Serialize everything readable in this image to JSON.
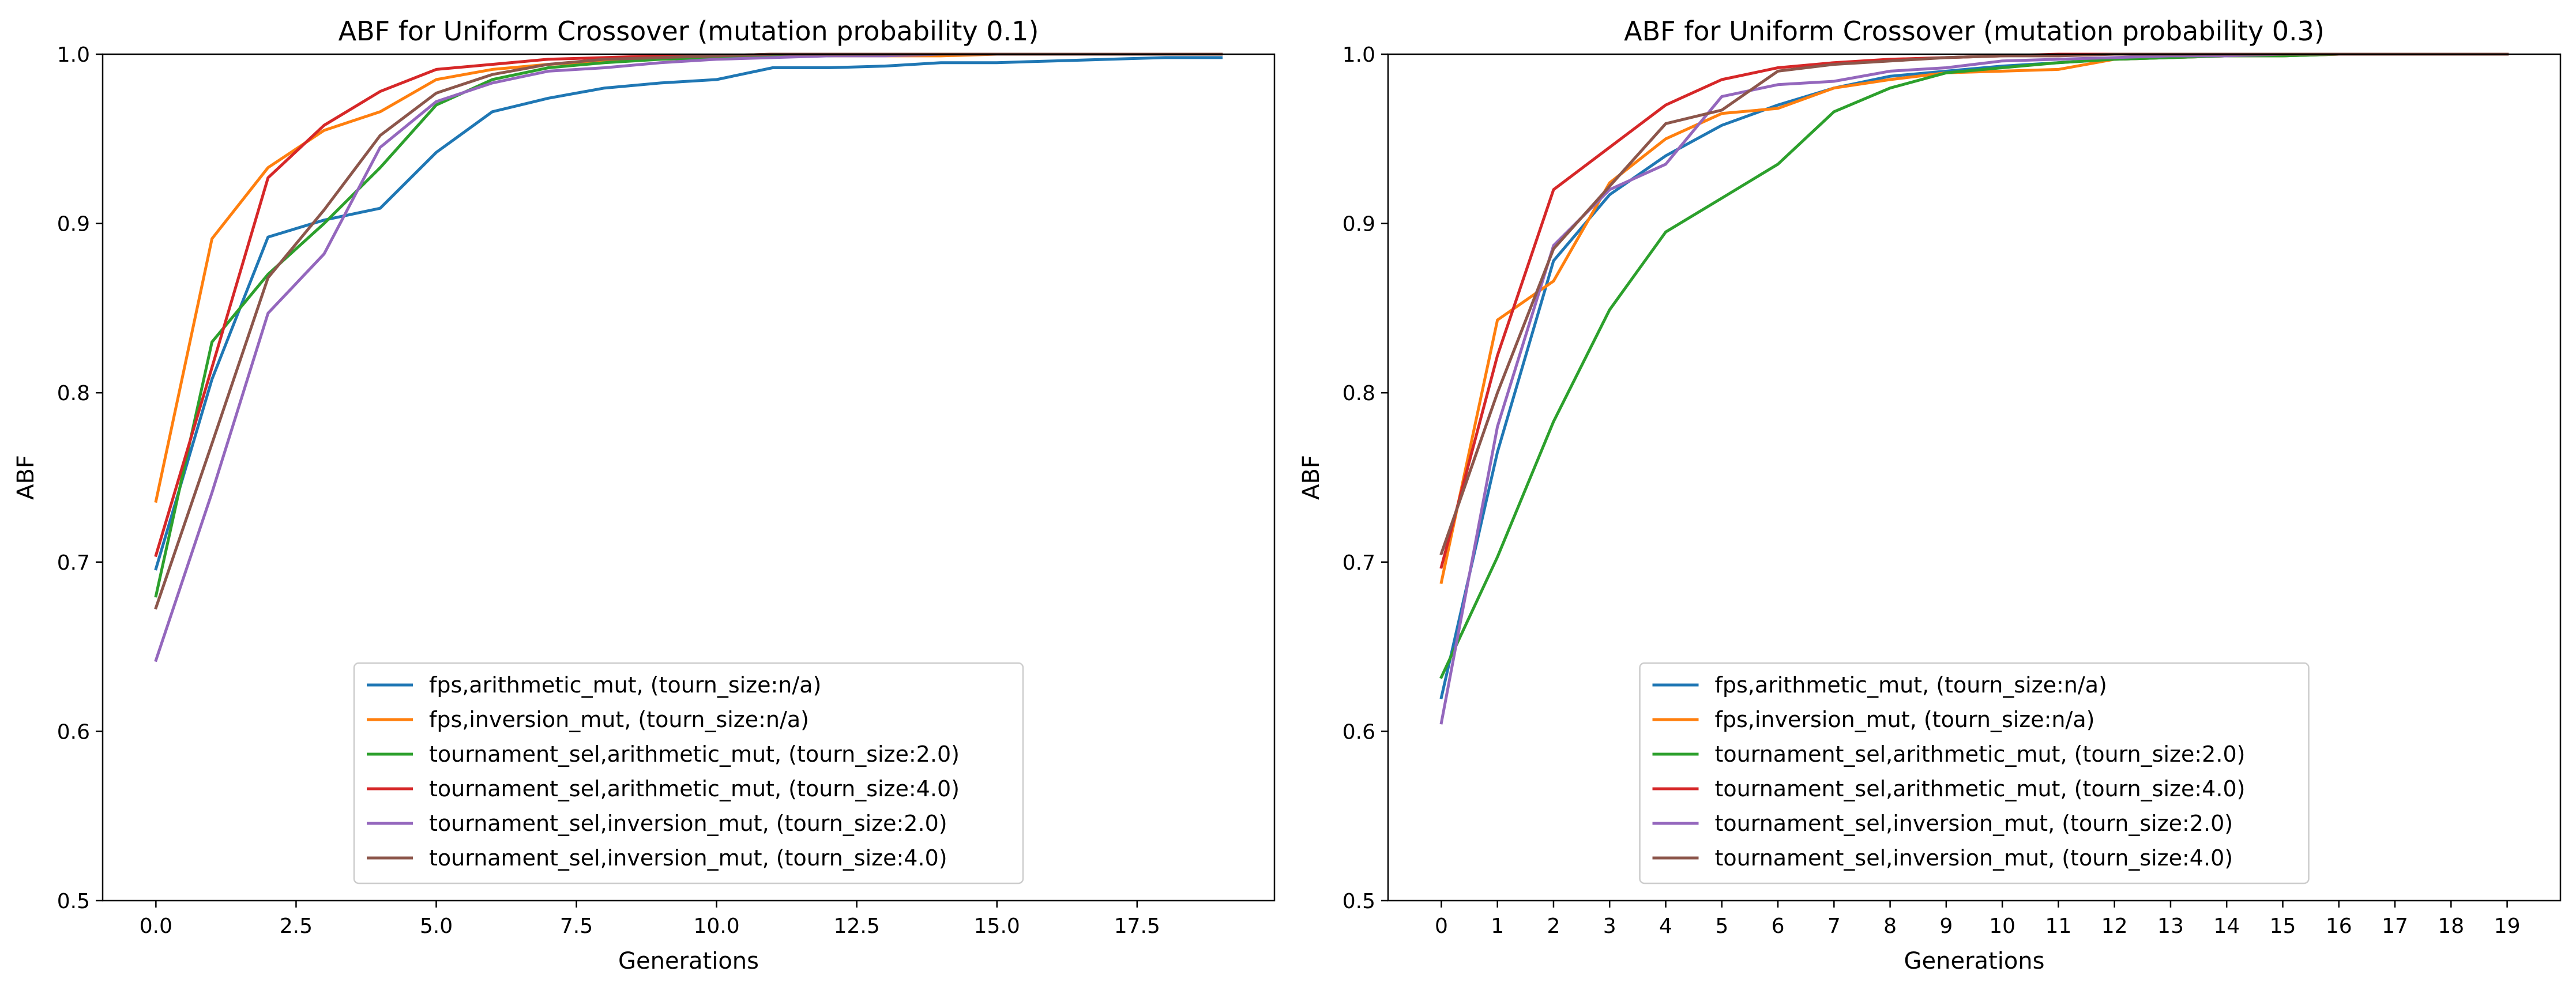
{
  "figure": {
    "charts": [
      {
        "title": "ABF for Uniform Crossover (mutation probability 0.1)",
        "xlabel": "Generations",
        "ylabel": "ABF"
      },
      {
        "title": "ABF for Uniform Crossover (mutation probability 0.3)",
        "xlabel": "Generations",
        "ylabel": "ABF"
      }
    ]
  },
  "chart_data": [
    {
      "type": "line",
      "title": "ABF for Uniform Crossover (mutation probability 0.1)",
      "xlabel": "Generations",
      "ylabel": "ABF",
      "xlim": [
        -0.95,
        19.95
      ],
      "ylim": [
        0.5,
        1.0
      ],
      "xticks": [
        0,
        2.5,
        5,
        7.5,
        10,
        12.5,
        15,
        17.5
      ],
      "xtick_labels": [
        "0.0",
        "2.5",
        "5.0",
        "7.5",
        "10.0",
        "12.5",
        "15.0",
        "17.5"
      ],
      "yticks": [
        0.5,
        0.6,
        0.7,
        0.8,
        0.9,
        1.0
      ],
      "ytick_labels": [
        "0.5",
        "0.6",
        "0.7",
        "0.8",
        "0.9",
        "1.0"
      ],
      "grid": false,
      "legend_position": "bottom-center",
      "x": [
        0,
        1,
        2,
        3,
        4,
        5,
        6,
        7,
        8,
        9,
        10,
        11,
        12,
        13,
        14,
        15,
        16,
        17,
        18,
        19
      ],
      "series": [
        {
          "name": "fps,arithmetic_mut, (tourn_size:n/a)",
          "color": "#1f77b4",
          "values": [
            0.696,
            0.808,
            0.892,
            0.902,
            0.909,
            0.942,
            0.966,
            0.974,
            0.98,
            0.983,
            0.985,
            0.992,
            0.992,
            0.993,
            0.995,
            0.995,
            0.996,
            0.997,
            0.998,
            0.998
          ]
        },
        {
          "name": "fps,inversion_mut, (tourn_size:n/a)",
          "color": "#ff7f0e",
          "values": [
            0.736,
            0.891,
            0.933,
            0.955,
            0.966,
            0.985,
            0.991,
            0.994,
            0.996,
            0.997,
            0.998,
            0.999,
            0.999,
            0.999,
            0.999,
            1.0,
            1.0,
            1.0,
            1.0,
            1.0
          ]
        },
        {
          "name": "tournament_sel,arithmetic_mut, (tourn_size:2.0)",
          "color": "#2ca02c",
          "values": [
            0.68,
            0.83,
            0.87,
            0.9,
            0.933,
            0.97,
            0.985,
            0.992,
            0.995,
            0.997,
            0.998,
            0.999,
            0.999,
            1.0,
            1.0,
            1.0,
            1.0,
            1.0,
            1.0,
            1.0
          ]
        },
        {
          "name": "tournament_sel,arithmetic_mut, (tourn_size:4.0)",
          "color": "#d62728",
          "values": [
            0.704,
            0.815,
            0.927,
            0.958,
            0.978,
            0.991,
            0.994,
            0.997,
            0.998,
            0.999,
            0.999,
            1.0,
            1.0,
            1.0,
            1.0,
            1.0,
            1.0,
            1.0,
            1.0,
            1.0
          ]
        },
        {
          "name": "tournament_sel,inversion_mut, (tourn_size:2.0)",
          "color": "#9467bd",
          "values": [
            0.642,
            0.741,
            0.847,
            0.882,
            0.945,
            0.972,
            0.983,
            0.99,
            0.992,
            0.995,
            0.997,
            0.998,
            0.999,
            0.999,
            1.0,
            1.0,
            1.0,
            1.0,
            1.0,
            1.0
          ]
        },
        {
          "name": "tournament_sel,inversion_mut, (tourn_size:4.0)",
          "color": "#8c564b",
          "values": [
            0.673,
            0.77,
            0.868,
            0.908,
            0.952,
            0.977,
            0.988,
            0.994,
            0.997,
            0.998,
            0.999,
            1.0,
            1.0,
            1.0,
            1.0,
            1.0,
            1.0,
            1.0,
            1.0,
            1.0
          ]
        }
      ]
    },
    {
      "type": "line",
      "title": "ABF for Uniform Crossover (mutation probability 0.3)",
      "xlabel": "Generations",
      "ylabel": "ABF",
      "xlim": [
        -0.95,
        19.95
      ],
      "ylim": [
        0.5,
        1.0
      ],
      "xticks": [
        0,
        1,
        2,
        3,
        4,
        5,
        6,
        7,
        8,
        9,
        10,
        11,
        12,
        13,
        14,
        15,
        16,
        17,
        18,
        19
      ],
      "xtick_labels": [
        "0",
        "1",
        "2",
        "3",
        "4",
        "5",
        "6",
        "7",
        "8",
        "9",
        "10",
        "11",
        "12",
        "13",
        "14",
        "15",
        "16",
        "17",
        "18",
        "19"
      ],
      "yticks": [
        0.5,
        0.6,
        0.7,
        0.8,
        0.9,
        1.0
      ],
      "ytick_labels": [
        "0.5",
        "0.6",
        "0.7",
        "0.8",
        "0.9",
        "1.0"
      ],
      "grid": false,
      "legend_position": "bottom-center",
      "x": [
        0,
        1,
        2,
        3,
        4,
        5,
        6,
        7,
        8,
        9,
        10,
        11,
        12,
        13,
        14,
        15,
        16,
        17,
        18,
        19
      ],
      "series": [
        {
          "name": "fps,arithmetic_mut, (tourn_size:n/a)",
          "color": "#1f77b4",
          "values": [
            0.62,
            0.765,
            0.878,
            0.917,
            0.94,
            0.958,
            0.97,
            0.98,
            0.987,
            0.99,
            0.993,
            0.995,
            0.997,
            0.998,
            0.999,
            0.999,
            1.0,
            1.0,
            1.0,
            1.0
          ]
        },
        {
          "name": "fps,inversion_mut, (tourn_size:n/a)",
          "color": "#ff7f0e",
          "values": [
            0.688,
            0.843,
            0.866,
            0.924,
            0.95,
            0.965,
            0.968,
            0.98,
            0.985,
            0.989,
            0.99,
            0.991,
            0.997,
            0.998,
            0.999,
            0.999,
            1.0,
            1.0,
            1.0,
            1.0
          ]
        },
        {
          "name": "tournament_sel,arithmetic_mut, (tourn_size:2.0)",
          "color": "#2ca02c",
          "values": [
            0.632,
            0.703,
            0.783,
            0.849,
            0.895,
            0.915,
            0.935,
            0.966,
            0.98,
            0.989,
            0.992,
            0.995,
            0.997,
            0.998,
            0.999,
            0.999,
            1.0,
            1.0,
            1.0,
            1.0
          ]
        },
        {
          "name": "tournament_sel,arithmetic_mut, (tourn_size:4.0)",
          "color": "#d62728",
          "values": [
            0.697,
            0.822,
            0.92,
            0.945,
            0.97,
            0.985,
            0.992,
            0.995,
            0.997,
            0.998,
            0.999,
            1.0,
            1.0,
            1.0,
            1.0,
            1.0,
            1.0,
            1.0,
            1.0,
            1.0
          ]
        },
        {
          "name": "tournament_sel,inversion_mut, (tourn_size:2.0)",
          "color": "#9467bd",
          "values": [
            0.605,
            0.78,
            0.887,
            0.92,
            0.935,
            0.975,
            0.982,
            0.984,
            0.99,
            0.992,
            0.996,
            0.997,
            0.998,
            0.999,
            0.999,
            1.0,
            1.0,
            1.0,
            1.0,
            1.0
          ]
        },
        {
          "name": "tournament_sel,inversion_mut, (tourn_size:4.0)",
          "color": "#8c564b",
          "values": [
            0.705,
            0.8,
            0.885,
            0.922,
            0.959,
            0.967,
            0.99,
            0.994,
            0.996,
            0.998,
            0.999,
            0.999,
            1.0,
            1.0,
            1.0,
            1.0,
            1.0,
            1.0,
            1.0,
            1.0
          ]
        }
      ]
    }
  ]
}
